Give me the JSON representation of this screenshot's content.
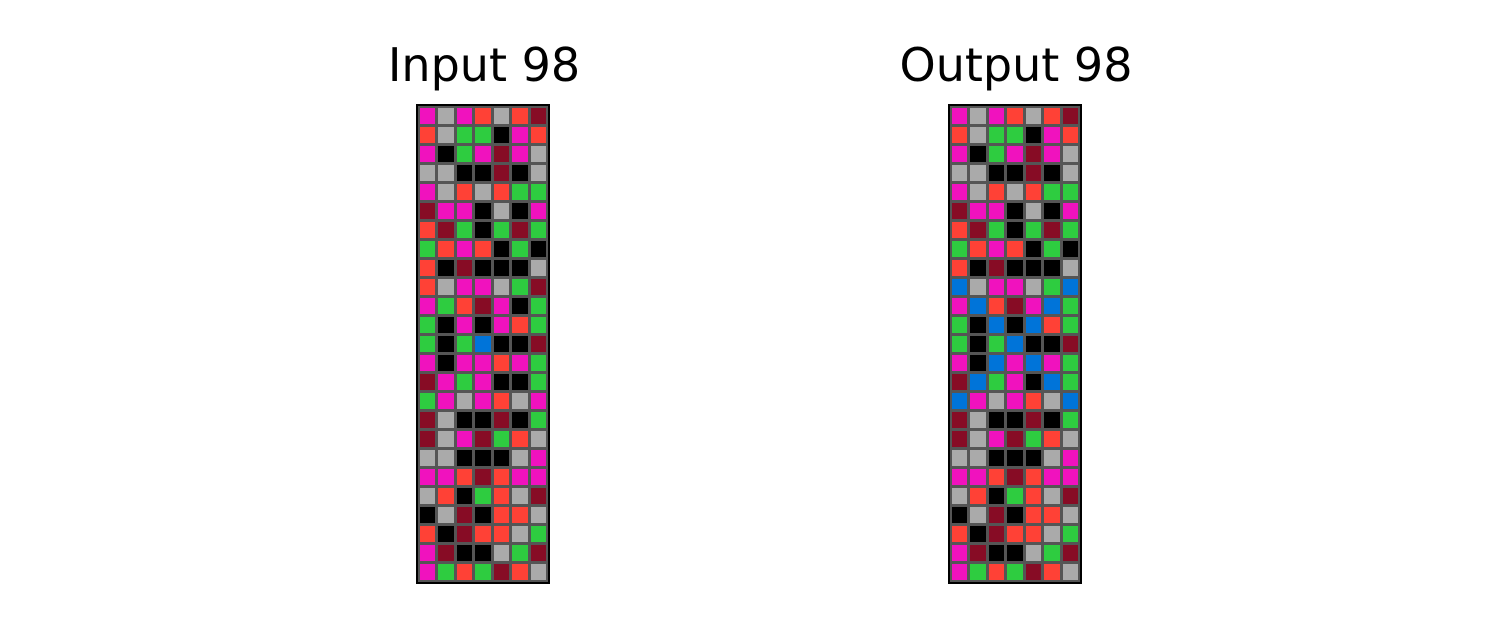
{
  "palette": {
    "0": "#000000",
    "1": "#0074D9",
    "2": "#FF4136",
    "3": "#2ECC40",
    "4": "#FFDC00",
    "5": "#AAAAAA",
    "6": "#F012BE",
    "7": "#FF851B",
    "8": "#7FDBFF",
    "9": "#870C25"
  },
  "input": {
    "title": "Input 98",
    "rows": [
      [
        6,
        5,
        6,
        2,
        5,
        2,
        9
      ],
      [
        2,
        5,
        3,
        3,
        0,
        6,
        2
      ],
      [
        6,
        0,
        3,
        6,
        9,
        6,
        5
      ],
      [
        5,
        5,
        0,
        0,
        9,
        0,
        5
      ],
      [
        6,
        5,
        2,
        5,
        2,
        3,
        3
      ],
      [
        9,
        6,
        6,
        0,
        5,
        0,
        6
      ],
      [
        2,
        9,
        3,
        0,
        3,
        9,
        3
      ],
      [
        3,
        2,
        6,
        2,
        0,
        3,
        0
      ],
      [
        2,
        0,
        9,
        0,
        0,
        0,
        5
      ],
      [
        2,
        5,
        6,
        6,
        5,
        3,
        9
      ],
      [
        6,
        3,
        2,
        9,
        6,
        0,
        3
      ],
      [
        3,
        0,
        6,
        0,
        6,
        2,
        3
      ],
      [
        3,
        0,
        3,
        1,
        0,
        0,
        9
      ],
      [
        6,
        0,
        6,
        6,
        2,
        6,
        3
      ],
      [
        9,
        6,
        3,
        6,
        0,
        0,
        3
      ],
      [
        3,
        6,
        5,
        6,
        2,
        5,
        6
      ],
      [
        9,
        5,
        0,
        0,
        9,
        0,
        3
      ],
      [
        9,
        5,
        6,
        9,
        3,
        2,
        5
      ],
      [
        5,
        5,
        0,
        0,
        0,
        5,
        6
      ],
      [
        6,
        6,
        2,
        9,
        2,
        6,
        6
      ],
      [
        5,
        2,
        0,
        3,
        2,
        5,
        9
      ],
      [
        0,
        5,
        9,
        0,
        2,
        2,
        5
      ],
      [
        2,
        0,
        9,
        2,
        2,
        5,
        3
      ],
      [
        6,
        9,
        0,
        0,
        5,
        3,
        9
      ],
      [
        6,
        3,
        2,
        3,
        9,
        2,
        5
      ]
    ]
  },
  "output": {
    "title": "Output 98",
    "rows": [
      [
        6,
        5,
        6,
        2,
        5,
        2,
        9
      ],
      [
        2,
        5,
        3,
        3,
        0,
        6,
        2
      ],
      [
        6,
        0,
        3,
        6,
        9,
        6,
        5
      ],
      [
        5,
        5,
        0,
        0,
        9,
        0,
        5
      ],
      [
        6,
        5,
        2,
        5,
        2,
        3,
        3
      ],
      [
        9,
        6,
        6,
        0,
        5,
        0,
        6
      ],
      [
        2,
        9,
        3,
        0,
        3,
        9,
        3
      ],
      [
        3,
        2,
        6,
        2,
        0,
        3,
        0
      ],
      [
        2,
        0,
        9,
        0,
        0,
        0,
        5
      ],
      [
        1,
        5,
        6,
        6,
        5,
        3,
        1
      ],
      [
        6,
        1,
        2,
        9,
        6,
        1,
        3
      ],
      [
        3,
        0,
        1,
        0,
        1,
        2,
        3
      ],
      [
        3,
        0,
        3,
        1,
        0,
        0,
        9
      ],
      [
        6,
        0,
        1,
        6,
        1,
        6,
        3
      ],
      [
        9,
        1,
        3,
        6,
        0,
        1,
        3
      ],
      [
        1,
        6,
        5,
        6,
        2,
        5,
        1
      ],
      [
        9,
        5,
        0,
        0,
        9,
        0,
        3
      ],
      [
        9,
        5,
        6,
        9,
        3,
        2,
        5
      ],
      [
        5,
        5,
        0,
        0,
        0,
        5,
        6
      ],
      [
        6,
        6,
        2,
        9,
        2,
        6,
        6
      ],
      [
        5,
        2,
        0,
        3,
        2,
        5,
        9
      ],
      [
        0,
        5,
        9,
        0,
        2,
        2,
        5
      ],
      [
        2,
        0,
        9,
        2,
        2,
        5,
        3
      ],
      [
        6,
        9,
        0,
        0,
        5,
        3,
        9
      ],
      [
        6,
        3,
        2,
        3,
        9,
        2,
        5
      ]
    ]
  }
}
